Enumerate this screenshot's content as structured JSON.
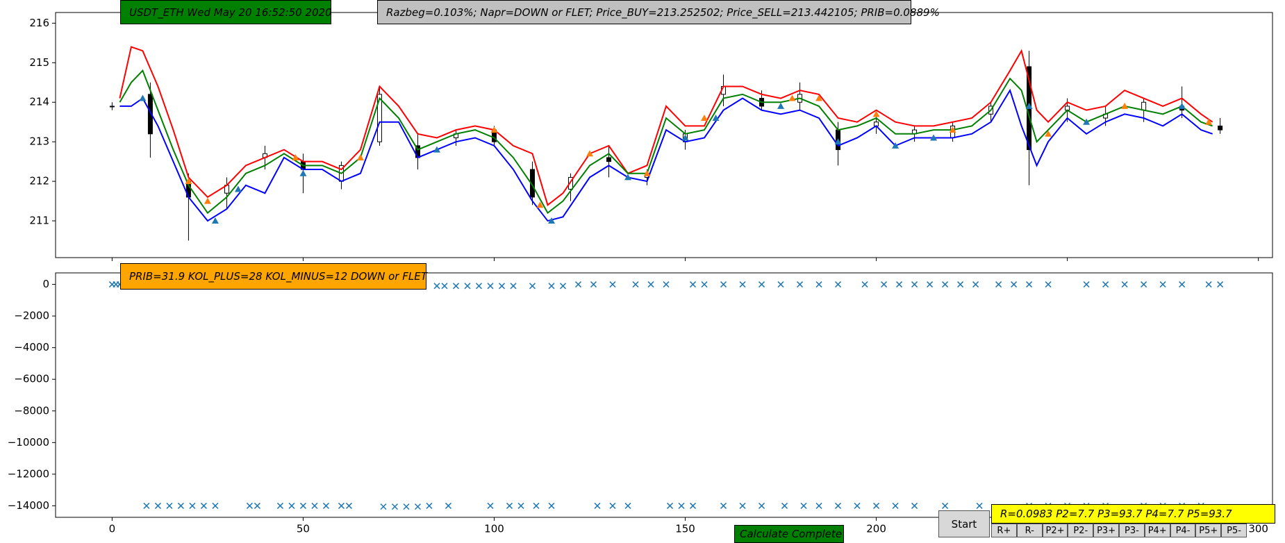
{
  "chart_data": [
    {
      "type": "candlestick",
      "xlim": [
        -14.8,
        303.7
      ],
      "ylim": [
        210.07,
        216.27
      ],
      "xticks": [
        0,
        50,
        100,
        150,
        200,
        250,
        300
      ],
      "yticks": [
        211,
        212,
        213,
        214,
        215,
        216
      ],
      "candles": {
        "x": [
          0,
          10,
          20,
          30,
          40,
          50,
          60,
          70,
          80,
          90,
          100,
          110,
          120,
          130,
          140,
          150,
          160,
          170,
          180,
          190,
          200,
          210,
          220,
          230,
          240,
          250,
          260,
          270,
          280,
          290
        ],
        "open": [
          213.9,
          214.2,
          212.0,
          211.7,
          212.6,
          212.5,
          212.0,
          213.0,
          212.9,
          213.1,
          213.3,
          212.3,
          211.8,
          212.6,
          212.1,
          213.0,
          214.2,
          214.1,
          214.0,
          213.3,
          213.4,
          213.2,
          213.1,
          213.7,
          214.9,
          213.8,
          213.6,
          213.8,
          213.9,
          213.4
        ],
        "high": [
          214.0,
          214.5,
          212.2,
          212.1,
          212.9,
          212.7,
          212.5,
          214.4,
          213.2,
          213.3,
          213.4,
          212.5,
          212.2,
          212.9,
          212.3,
          213.3,
          214.7,
          214.3,
          214.5,
          213.5,
          213.7,
          213.4,
          213.5,
          214.0,
          215.3,
          214.1,
          213.9,
          214.1,
          214.4,
          213.6
        ],
        "low": [
          213.8,
          212.6,
          210.5,
          211.3,
          212.3,
          211.7,
          211.8,
          212.9,
          212.3,
          212.9,
          212.9,
          211.4,
          211.5,
          212.1,
          211.9,
          212.8,
          213.9,
          213.8,
          213.8,
          212.4,
          213.2,
          213.0,
          213.0,
          213.5,
          211.9,
          213.5,
          213.4,
          213.5,
          213.6,
          213.2
        ],
        "close": [
          213.9,
          213.2,
          211.6,
          211.9,
          212.7,
          212.3,
          212.4,
          214.2,
          212.6,
          213.2,
          213.0,
          211.6,
          212.1,
          212.5,
          212.2,
          213.2,
          214.4,
          213.9,
          214.2,
          212.8,
          213.5,
          213.3,
          213.4,
          213.9,
          212.8,
          213.9,
          213.7,
          214.0,
          213.8,
          213.3
        ]
      },
      "x": [
        2,
        5,
        8,
        12,
        16,
        20,
        25,
        30,
        35,
        40,
        45,
        50,
        55,
        60,
        65,
        70,
        75,
        80,
        85,
        90,
        95,
        100,
        105,
        110,
        114,
        118,
        125,
        130,
        135,
        140,
        145,
        150,
        155,
        160,
        165,
        170,
        175,
        180,
        185,
        190,
        195,
        200,
        205,
        210,
        215,
        220,
        225,
        230,
        235,
        238,
        242,
        245,
        250,
        255,
        260,
        265,
        270,
        275,
        280,
        285,
        288
      ],
      "series": [
        {
          "color": "#ff0000",
          "values": [
            214.1,
            215.4,
            215.3,
            214.4,
            213.3,
            212.1,
            211.6,
            211.9,
            212.4,
            212.6,
            212.8,
            212.5,
            212.5,
            212.3,
            212.8,
            214.4,
            213.9,
            213.2,
            213.1,
            213.3,
            213.4,
            213.3,
            212.9,
            212.7,
            211.4,
            211.7,
            212.7,
            212.9,
            212.2,
            212.4,
            213.9,
            213.4,
            213.4,
            214.4,
            214.4,
            214.2,
            214.1,
            214.3,
            214.2,
            213.6,
            213.5,
            213.8,
            213.5,
            213.4,
            213.4,
            213.5,
            213.6,
            214.0,
            214.8,
            215.3,
            213.8,
            213.5,
            214.0,
            213.8,
            213.9,
            214.3,
            214.1,
            213.9,
            214.1,
            213.7,
            213.5
          ]
        },
        {
          "color": "#008000",
          "values": [
            214.0,
            214.5,
            214.8,
            213.8,
            212.8,
            211.9,
            211.2,
            211.6,
            212.2,
            212.4,
            212.7,
            212.4,
            212.4,
            212.2,
            212.6,
            214.1,
            213.6,
            212.8,
            213.0,
            213.2,
            213.3,
            213.1,
            212.6,
            211.9,
            211.2,
            211.5,
            212.4,
            212.7,
            212.2,
            212.2,
            213.6,
            213.2,
            213.3,
            214.1,
            214.2,
            214.0,
            214.0,
            214.1,
            213.9,
            213.3,
            213.4,
            213.6,
            213.2,
            213.2,
            213.3,
            213.3,
            213.4,
            213.8,
            214.6,
            214.3,
            213.0,
            213.3,
            213.8,
            213.5,
            213.7,
            213.9,
            213.8,
            213.7,
            213.9,
            213.5,
            213.4
          ]
        },
        {
          "color": "#0000ff",
          "values": [
            213.9,
            213.9,
            214.1,
            213.4,
            212.5,
            211.6,
            211.0,
            211.3,
            211.9,
            211.7,
            212.6,
            212.3,
            212.3,
            212.0,
            212.2,
            213.5,
            213.5,
            212.6,
            212.8,
            213.0,
            213.1,
            212.9,
            212.3,
            211.5,
            211.0,
            211.1,
            212.1,
            212.4,
            212.1,
            212.0,
            213.3,
            213.0,
            213.1,
            213.8,
            214.1,
            213.8,
            213.7,
            213.8,
            213.6,
            212.9,
            213.1,
            213.4,
            212.9,
            213.1,
            213.1,
            213.1,
            213.2,
            213.5,
            214.3,
            213.4,
            212.4,
            213.0,
            213.6,
            213.2,
            213.5,
            213.7,
            213.6,
            213.4,
            213.7,
            213.3,
            213.2
          ]
        }
      ],
      "markers": [
        {
          "color": "#1f77b4",
          "x": [
            8,
            27,
            33,
            50,
            85,
            115,
            135,
            150,
            158,
            175,
            190,
            205,
            215,
            240,
            255,
            280
          ],
          "values": [
            214.1,
            211.0,
            211.8,
            212.2,
            212.8,
            211.0,
            212.1,
            213.1,
            213.6,
            213.9,
            213.0,
            212.9,
            213.1,
            213.9,
            213.5,
            213.9
          ]
        },
        {
          "color": "#ff7f0e",
          "x": [
            20,
            25,
            48,
            65,
            100,
            112,
            125,
            140,
            155,
            178,
            185,
            200,
            220,
            245,
            265,
            287
          ],
          "values": [
            212.0,
            211.5,
            212.6,
            212.6,
            213.3,
            211.4,
            212.7,
            212.2,
            213.6,
            214.1,
            214.1,
            213.7,
            213.3,
            213.2,
            213.9,
            213.5
          ]
        }
      ]
    },
    {
      "type": "scatter",
      "xlim": [
        -14.8,
        303.7
      ],
      "ylim": [
        -14726,
        726
      ],
      "xticks": [
        0,
        50,
        100,
        150,
        200,
        250,
        300
      ],
      "yticks": [
        0,
        {
          "value": -2000,
          "label": "−2000"
        },
        {
          "value": -4000,
          "label": "−4000"
        },
        {
          "value": -6000,
          "label": "−6000"
        },
        {
          "value": -8000,
          "label": "−8000"
        },
        {
          "value": -10000,
          "label": "−10000"
        },
        {
          "value": -12000,
          "label": "−12000"
        },
        {
          "value": -14000,
          "label": "−14000"
        }
      ],
      "series": [
        {
          "color": "#1f77b4",
          "x": [
            0,
            1,
            2,
            85,
            87,
            90,
            93,
            96,
            99,
            102,
            105,
            110,
            115,
            118,
            122,
            126,
            131,
            137,
            141,
            145,
            152,
            155,
            160,
            165,
            170,
            175,
            180,
            185,
            190,
            197,
            202,
            206,
            210,
            214,
            218,
            222,
            226,
            232,
            236,
            240,
            245,
            255,
            260,
            265,
            270,
            275,
            280,
            287,
            290,
            9,
            12,
            15,
            18,
            21,
            24,
            27,
            36,
            38,
            44,
            47,
            50,
            53,
            56,
            60,
            62,
            71,
            74,
            77,
            80,
            83,
            88,
            99,
            104,
            107,
            111,
            115,
            127,
            131,
            135,
            146,
            149,
            152,
            160,
            165,
            170,
            176,
            181,
            185,
            190,
            195,
            200,
            205,
            210,
            218,
            227,
            240,
            245,
            250,
            255,
            260,
            270,
            275,
            280,
            285
          ],
          "values": [
            0,
            0,
            0,
            -100,
            -100,
            -100,
            -100,
            -100,
            -100,
            -100,
            -100,
            -100,
            -100,
            -100,
            0,
            0,
            0,
            0,
            0,
            0,
            0,
            0,
            0,
            0,
            0,
            0,
            0,
            0,
            0,
            0,
            0,
            0,
            0,
            0,
            0,
            0,
            0,
            0,
            0,
            0,
            0,
            0,
            0,
            0,
            0,
            0,
            0,
            0,
            0,
            -14000,
            -14000,
            -14000,
            -14000,
            -14000,
            -14000,
            -14000,
            -14000,
            -14000,
            -14000,
            -14000,
            -14000,
            -14000,
            -14000,
            -14000,
            -14000,
            -14050,
            -14050,
            -14050,
            -14050,
            -14000,
            -14000,
            -14000,
            -14000,
            -14000,
            -14000,
            -14000,
            -14000,
            -14000,
            -14000,
            -14000,
            -14000,
            -14000,
            -14000,
            -14000,
            -14000,
            -14000,
            -14000,
            -14000,
            -14000,
            -14000,
            -14000,
            -14000,
            -14000,
            -14000,
            -14000,
            -14000,
            -14000,
            -14000,
            -14000,
            -14000,
            -14000,
            -14000,
            -14000,
            -14000
          ]
        }
      ]
    }
  ],
  "ui": {
    "header_label": "USDT_ETH Wed May 20 16:52:50 2020",
    "info_label": "Razbeg=0.103%;  Napr=DOWN or FLET; Price_BUY=213.252502; Price_SELL=213.442105; PRIB=0.0889%",
    "stats_label": "PRIB=31.9  KOL_PLUS=28   KOL_MINUS=12  DOWN or FLET",
    "status_label": "Calculate   Complete",
    "start_button": "Start",
    "params_label": "R=0.0983     P2=7.7     P3=93.7     P4=7.7       P5=93.7",
    "buttons": [
      "R+",
      "R-",
      "P2+",
      "P2-",
      "P3+",
      "P3-",
      "P4+",
      "P4-",
      "P5+",
      "P5-"
    ]
  }
}
